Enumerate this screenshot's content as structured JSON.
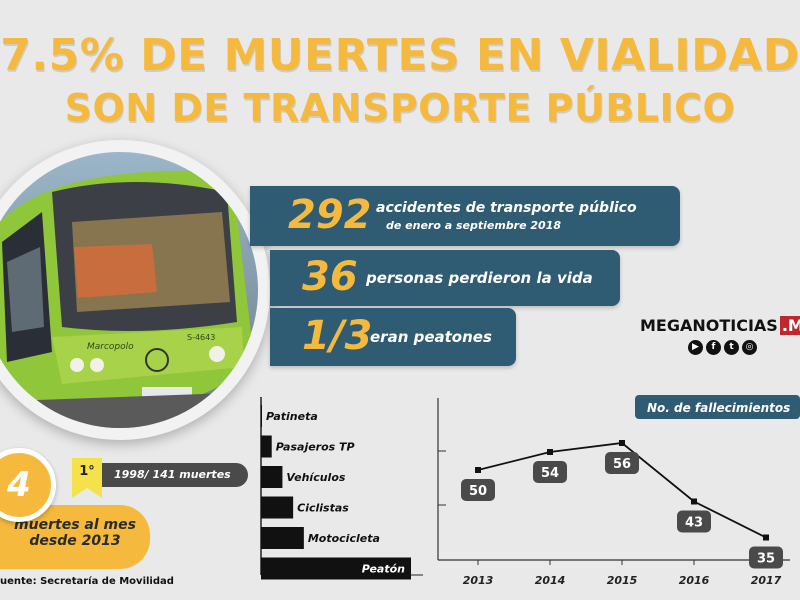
{
  "headline": {
    "line1": "7.5% DE MUERTES EN VIALIDAD",
    "line2": "SON DE TRANSPORTE PÚBLICO"
  },
  "photo": {
    "bus_brand": "Marcopolo",
    "bus_code": "S-4643"
  },
  "stats": [
    {
      "number": "292",
      "text": "accidentes de transporte público",
      "subtext": "de enero a septiembre 2018"
    },
    {
      "number": "36",
      "text": "personas perdieron la vida"
    },
    {
      "number": "1/3",
      "text": "eran peatones"
    }
  ],
  "brand": {
    "name": "MEGANOTICIAS",
    "suffix": ".MX"
  },
  "socials": [
    {
      "icon": "youtube-icon",
      "glyph": "▶"
    },
    {
      "icon": "facebook-icon",
      "glyph": "f"
    },
    {
      "icon": "twitter-icon",
      "glyph": "t"
    },
    {
      "icon": "instagram-icon",
      "glyph": "◎"
    }
  ],
  "monthly": {
    "number": "4",
    "line1": "muertes al mes",
    "line2": "desde 2013"
  },
  "record": {
    "rank": "1°",
    "text": "1998/ 141 muertes"
  },
  "source": "uente: Secretaría de Movilidad",
  "chart_data": [
    {
      "type": "bar",
      "orientation": "horizontal",
      "categories": [
        "Patineta",
        "Pasajeros TP",
        "Vehículos",
        "Ciclistas",
        "Motocicleta",
        "Peatón"
      ],
      "values": [
        0,
        1,
        2,
        3,
        4,
        14
      ],
      "colors": {
        "bar": "#111111",
        "bar_label": "#111111",
        "top_bar_label": "#ffffff"
      }
    },
    {
      "type": "line",
      "title": "No. de fallecimientos",
      "categories": [
        "2013",
        "2014",
        "2015",
        "2016",
        "2017"
      ],
      "values": [
        50,
        54,
        56,
        43,
        35
      ],
      "ylim": [
        30,
        60
      ],
      "colors": {
        "line": "#111111",
        "label_bg": "#4a4a4a",
        "title_bg": "#2f5b73"
      }
    }
  ]
}
